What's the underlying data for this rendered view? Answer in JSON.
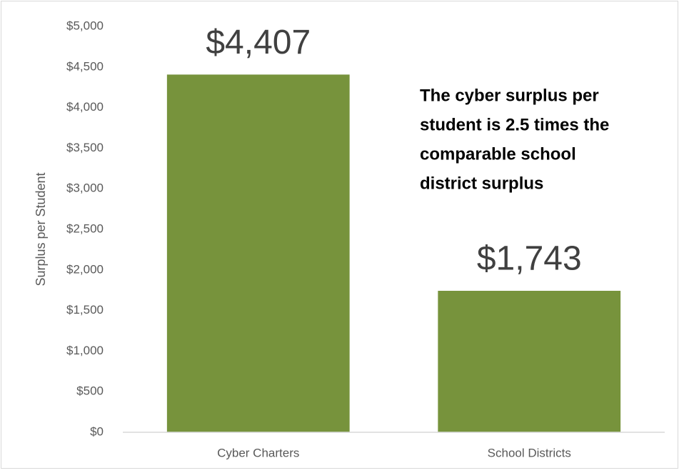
{
  "chart_data": {
    "type": "bar",
    "y_label": "Surplus per Student",
    "annotation": [
      "The cyber surplus per",
      "student is 2.5 times the",
      "comparable school",
      "district surplus"
    ],
    "categories": [
      "Cyber Charters",
      "School Districts"
    ],
    "values": [
      4407,
      1743
    ],
    "value_labels": [
      "$4,407",
      "$1,743"
    ],
    "color": "#77933c",
    "ylim": [
      0,
      5000
    ],
    "yticks": [
      {
        "value": 0,
        "label": "$0"
      },
      {
        "value": 500,
        "label": "$500"
      },
      {
        "value": 1000,
        "label": "$1,000"
      },
      {
        "value": 1500,
        "label": "$1,500"
      },
      {
        "value": 2000,
        "label": "$2,000"
      },
      {
        "value": 2500,
        "label": "$2,500"
      },
      {
        "value": 3000,
        "label": "$3,000"
      },
      {
        "value": 3500,
        "label": "$3,500"
      },
      {
        "value": 4000,
        "label": "$4,000"
      },
      {
        "value": 4500,
        "label": "$4,500"
      },
      {
        "value": 5000,
        "label": "$5,000"
      }
    ],
    "grid": false
  }
}
